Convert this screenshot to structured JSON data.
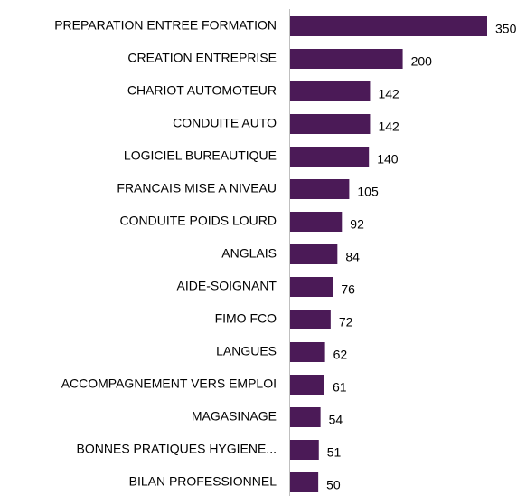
{
  "chart_data": {
    "type": "hbar",
    "categories": [
      "PREPARATION ENTREE FORMATION",
      "CREATION ENTREPRISE",
      "CHARIOT AUTOMOTEUR",
      "CONDUITE AUTO",
      "LOGICIEL BUREAUTIQUE",
      "FRANCAIS MISE A NIVEAU",
      "CONDUITE POIDS LOURD",
      "ANGLAIS",
      "AIDE-SOIGNANT",
      "FIMO FCO",
      "LANGUES",
      "ACCOMPAGNEMENT VERS EMPLOI",
      "MAGASINAGE",
      "BONNES PRATIQUES HYGIENE...",
      "BILAN PROFESSIONNEL"
    ],
    "values": [
      350,
      200,
      142,
      142,
      140,
      105,
      92,
      84,
      76,
      72,
      62,
      61,
      54,
      51,
      50
    ],
    "color": "#4b1a57"
  }
}
